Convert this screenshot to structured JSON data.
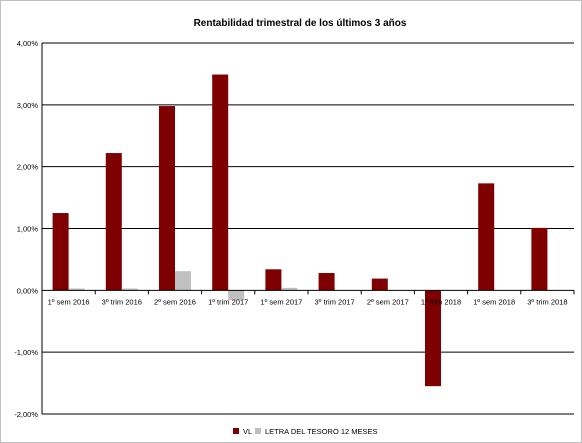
{
  "chart_data": {
    "type": "bar",
    "title": "Rentabilidad trimestral de los últimos 3 años",
    "xlabel": "",
    "ylabel": "",
    "categories": [
      "1º sem 2016",
      "3º trim 2016",
      "2º sem 2016",
      "1º trim 2017",
      "1º sem 2017",
      "3º trim 2017",
      "2º sem 2017",
      "1º trim 2018",
      "1º sem 2018",
      "3º trim 2018"
    ],
    "series": [
      {
        "name": "VL",
        "color": "#7f0000",
        "values": [
          1.25,
          2.22,
          2.98,
          3.49,
          0.34,
          0.28,
          0.19,
          -1.55,
          1.73,
          1.01
        ]
      },
      {
        "name": "LETRA DEL TESORO 12 MESES",
        "color": "#c0c0c0",
        "values": [
          0.03,
          0.03,
          0.31,
          -0.16,
          0.04,
          0.0,
          0.0,
          0.0,
          0.0,
          0.0
        ]
      }
    ],
    "ylim": [
      -2,
      4
    ],
    "yticks": [
      -2,
      -1,
      0,
      1,
      2,
      3,
      4
    ],
    "ytick_labels": [
      "-2,00%",
      "-1,00%",
      "0,00%",
      "1,00%",
      "2,00%",
      "3,00%",
      "4,00%"
    ],
    "grid": true,
    "legend": "bottom"
  }
}
